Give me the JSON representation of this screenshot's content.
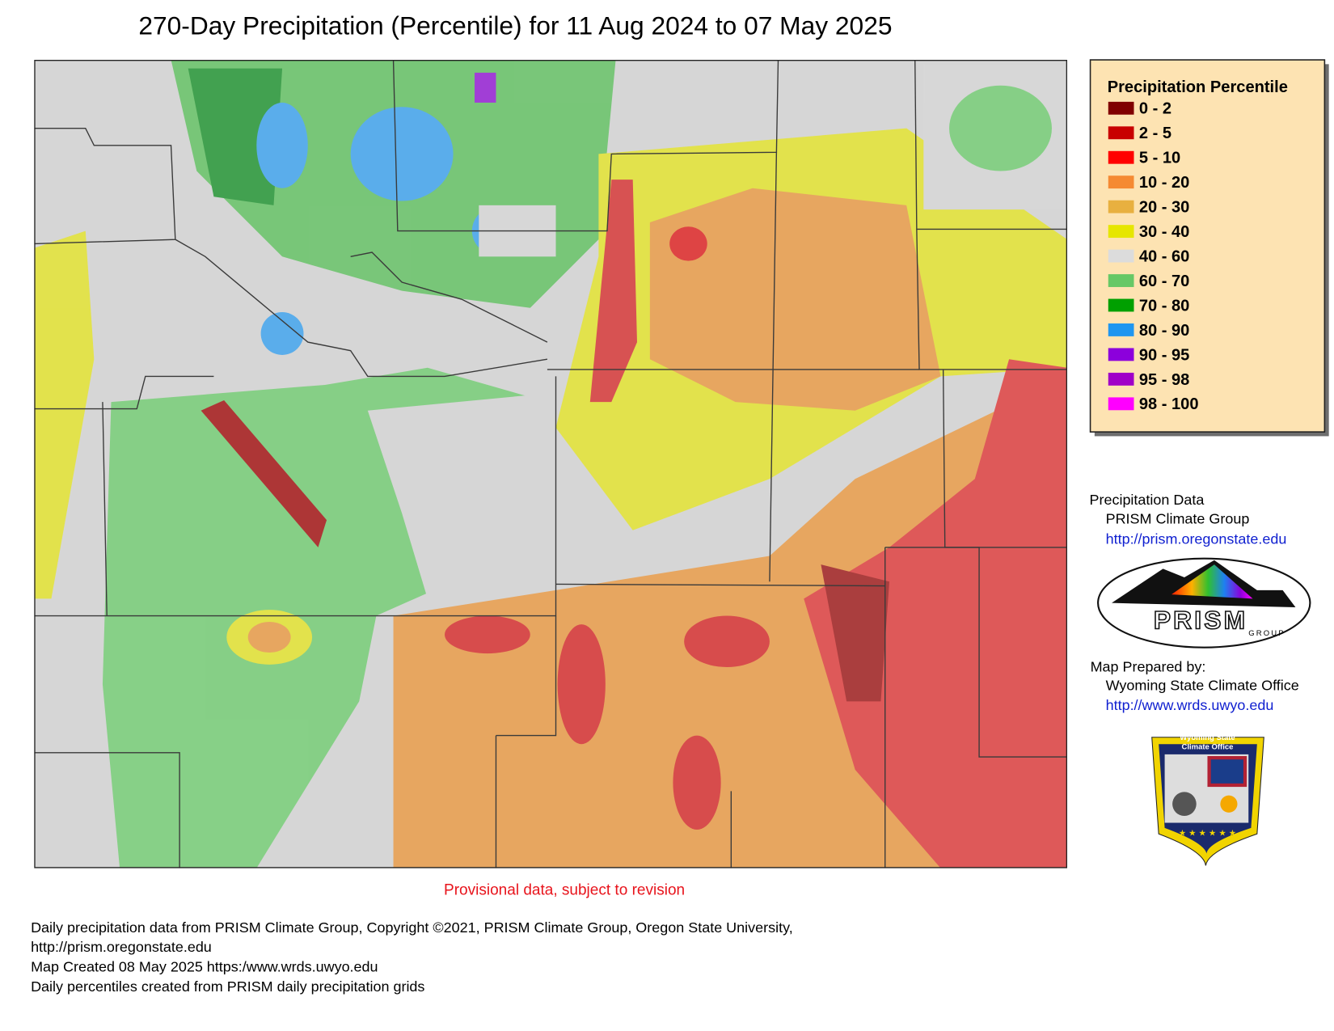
{
  "title": "270-Day Precipitation (Percentile) for 11 Aug 2024 to 07 May 2025",
  "legend": {
    "title": "Precipitation Percentile",
    "items": [
      {
        "label": "0 - 2",
        "color": "#800000"
      },
      {
        "label": "2 - 5",
        "color": "#c80000"
      },
      {
        "label": "5 - 10",
        "color": "#ff0000"
      },
      {
        "label": "10 - 20",
        "color": "#f58a32"
      },
      {
        "label": "20 - 30",
        "color": "#e8b040"
      },
      {
        "label": "30 - 40",
        "color": "#e6e600"
      },
      {
        "label": "40 - 60",
        "color": "#dcdcdc"
      },
      {
        "label": "60 - 70",
        "color": "#66c866"
      },
      {
        "label": "70 - 80",
        "color": "#00a000"
      },
      {
        "label": "80 - 90",
        "color": "#1e96f0"
      },
      {
        "label": "90 - 95",
        "color": "#8c00dc"
      },
      {
        "label": "95 - 98",
        "color": "#a000c8"
      },
      {
        "label": "98 - 100",
        "color": "#ff00ff"
      }
    ]
  },
  "provisional_note": "Provisional data, subject to revision",
  "credits": {
    "data_heading": "Precipitation Data",
    "data_source": "PRISM Climate Group",
    "data_url": "http://prism.oregonstate.edu",
    "prepared_heading": "Map Prepared by:",
    "prepared_by": "Wyoming State Climate Office",
    "prepared_url": "http://www.wrds.uwyo.edu"
  },
  "prism_logo": {
    "text": "PRISM",
    "subtext": "GROUP"
  },
  "wsco_logo": {
    "line1": "Wyoming State",
    "line2": "Climate Office"
  },
  "footer": [
    "Daily precipitation data from PRISM Climate Group, Copyright ©2021, PRISM Climate Group, Oregon State University,",
    "http://prism.oregonstate.edu",
    "Map Created 08 May 2025 https:/www.wrds.uwyo.edu",
    "Daily percentiles created from PRISM daily precipitation grids"
  ]
}
